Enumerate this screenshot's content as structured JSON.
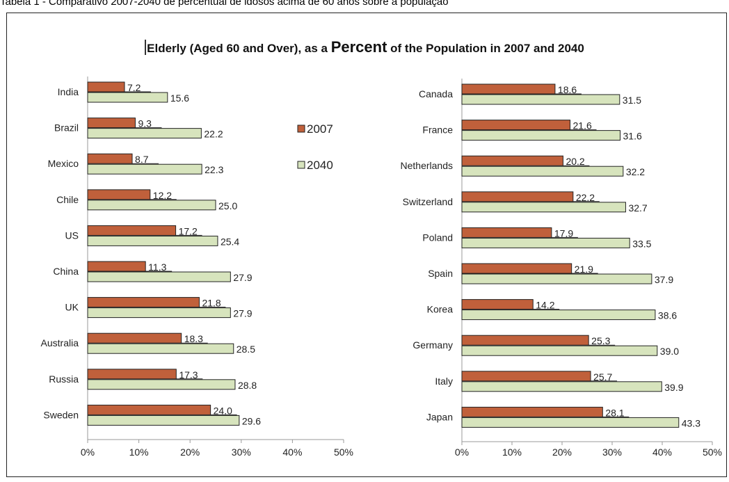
{
  "caption": "Tabela 1 - Comparativo 2007-2040 de percentual de idosos acima de 60 anos sobre a população",
  "title": {
    "part1": "Elderly (Aged 60 and Over), as a ",
    "emphasis": "Percent",
    "part2": " of the Population in 2007 and 2040"
  },
  "legend": {
    "placement": "between-panels",
    "items": [
      {
        "label": "2007",
        "color": "#c0603b"
      },
      {
        "label": "2040",
        "color": "#d7e4bd"
      }
    ]
  },
  "colors": {
    "series_2007": "#c0603b",
    "series_2040": "#d7e4bd",
    "bar_border": "#222222",
    "axis": "#999999"
  },
  "chart_data": [
    {
      "type": "bar",
      "orientation": "horizontal",
      "categories": [
        "India",
        "Brazil",
        "Mexico",
        "Chile",
        "US",
        "China",
        "UK",
        "Australia",
        "Russia",
        "Sweden"
      ],
      "series": [
        {
          "name": "2007",
          "values": [
            7.2,
            9.3,
            8.7,
            12.2,
            17.2,
            11.3,
            21.8,
            18.3,
            17.3,
            24.0
          ]
        },
        {
          "name": "2040",
          "values": [
            15.6,
            22.2,
            22.3,
            25.0,
            25.4,
            27.9,
            27.9,
            28.5,
            28.8,
            29.6
          ]
        }
      ],
      "xlim": [
        0,
        50
      ],
      "xticks": [
        "0%",
        "10%",
        "20%",
        "30%",
        "40%",
        "50%"
      ],
      "grid": false
    },
    {
      "type": "bar",
      "orientation": "horizontal",
      "categories": [
        "Canada",
        "France",
        "Netherlands",
        "Switzerland",
        "Poland",
        "Spain",
        "Korea",
        "Germany",
        "Italy",
        "Japan"
      ],
      "series": [
        {
          "name": "2007",
          "values": [
            18.6,
            21.6,
            20.2,
            22.2,
            17.9,
            21.9,
            14.2,
            25.3,
            25.7,
            28.1
          ]
        },
        {
          "name": "2040",
          "values": [
            31.5,
            31.6,
            32.2,
            32.7,
            33.5,
            37.9,
            38.6,
            39.0,
            39.9,
            43.3
          ]
        }
      ],
      "xlim": [
        0,
        50
      ],
      "xticks": [
        "0%",
        "10%",
        "20%",
        "30%",
        "40%",
        "50%"
      ],
      "grid": false
    }
  ]
}
